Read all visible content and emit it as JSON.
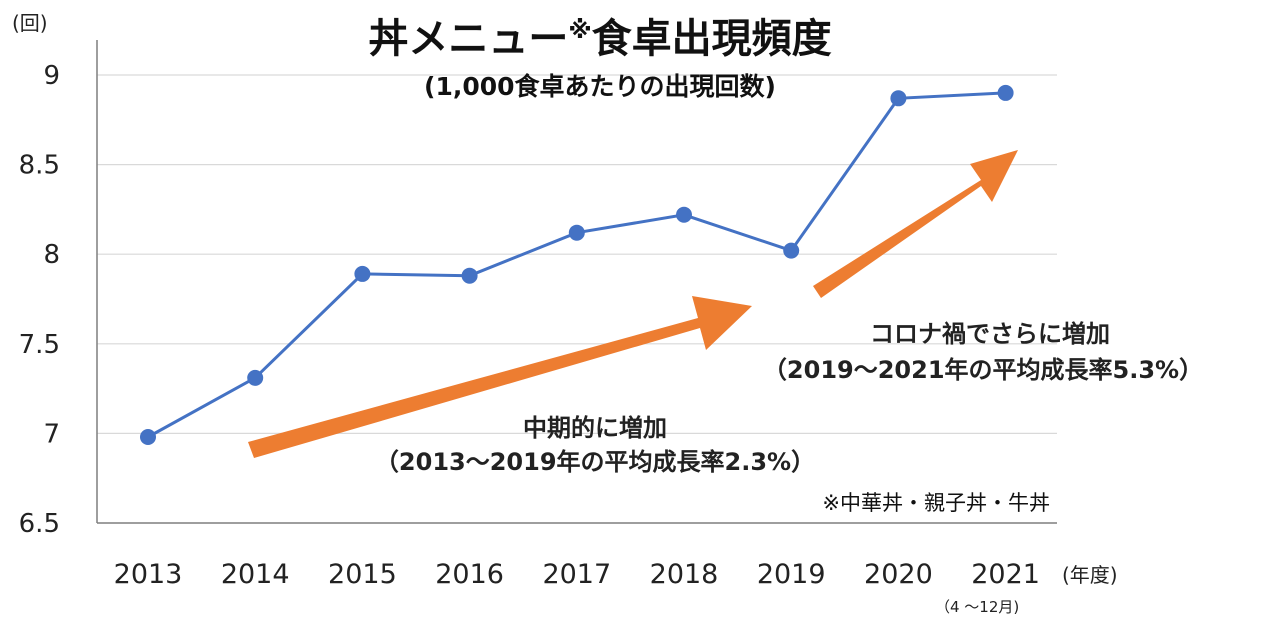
{
  "chart_data": {
    "type": "line",
    "title_main": "丼メニュー",
    "title_mark": "※",
    "title_rest": "食卓出現頻度",
    "subtitle": "(1,000食卓あたりの出現回数)",
    "y_unit_label": "(回)",
    "x_unit_label": "(年度)",
    "x_extra_label": "（4 ～12月)",
    "categories": [
      "2013",
      "2014",
      "2015",
      "2016",
      "2017",
      "2018",
      "2019",
      "2020",
      "2021"
    ],
    "series": [
      {
        "values": [
          6.98,
          7.31,
          7.89,
          7.88,
          8.12,
          8.22,
          8.02,
          8.87,
          8.9
        ]
      }
    ],
    "ylim": [
      6.5,
      9
    ],
    "yticks": [
      "6.5",
      "7",
      "7.5",
      "8",
      "8.5",
      "9"
    ],
    "grid": true,
    "footnote": "※中華丼・親子丼・牛丼",
    "annotations": [
      {
        "line1": "中期的に増加",
        "line2": "（2013～2019年の平均成長率2.3%）"
      },
      {
        "line1": "コロナ禍でさらに増加",
        "line2": "（2019～2021年の平均成長率5.3%）"
      }
    ],
    "colors": {
      "line": "#4472C4",
      "arrow": "#ED7D31",
      "grid": "#D9D9D9",
      "axis": "#7F7F7F"
    }
  }
}
